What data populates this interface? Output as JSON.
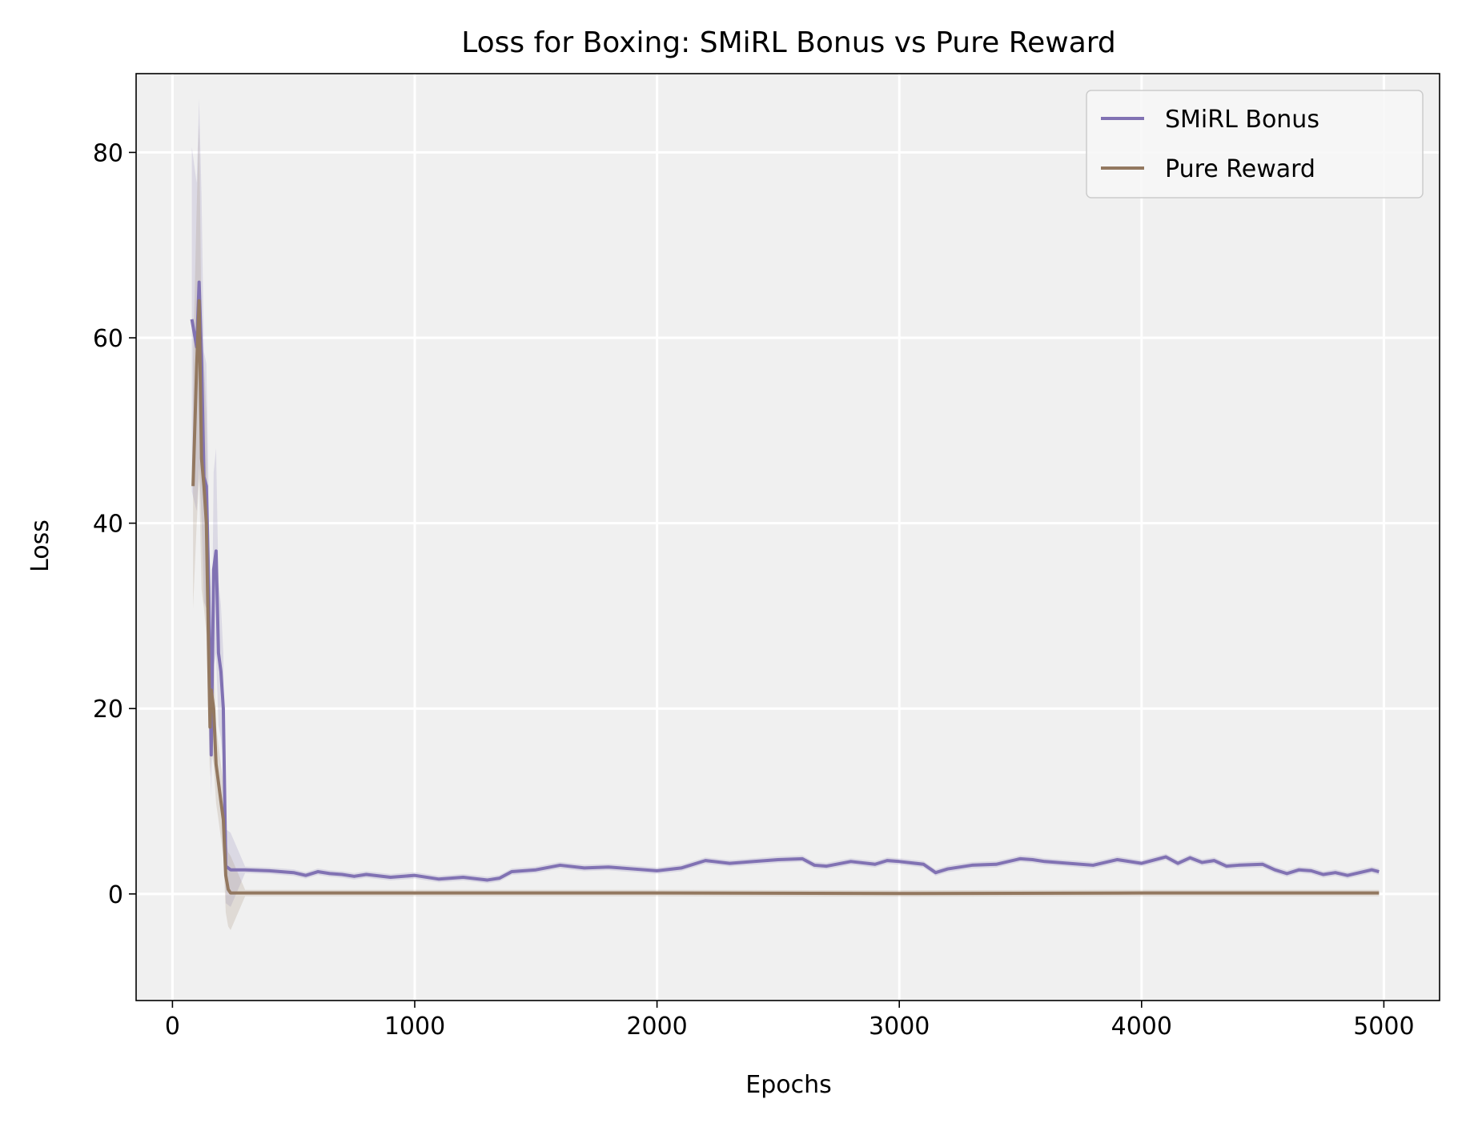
{
  "chart_data": {
    "type": "line",
    "title": "Loss for Boxing: SMiRL Bonus vs Pure Reward",
    "xlabel": "Epochs",
    "ylabel": "Loss",
    "xlim": [
      -150,
      5230
    ],
    "ylim": [
      -11.5,
      88.5
    ],
    "xticks": [
      0,
      1000,
      2000,
      3000,
      4000,
      5000
    ],
    "yticks": [
      0,
      20,
      40,
      60,
      80
    ],
    "grid": true,
    "legend_position": "top-right",
    "background": "#f0f0f0",
    "series": [
      {
        "name": "SMiRL Bonus",
        "color": "#8172b3",
        "x": [
          80,
          100,
          110,
          120,
          130,
          140,
          150,
          160,
          170,
          180,
          190,
          200,
          210,
          220,
          240,
          300,
          400,
          500,
          550,
          600,
          650,
          700,
          750,
          800,
          900,
          1000,
          1100,
          1200,
          1300,
          1350,
          1400,
          1500,
          1600,
          1700,
          1800,
          1900,
          2000,
          2100,
          2200,
          2300,
          2400,
          2500,
          2600,
          2650,
          2700,
          2800,
          2900,
          2950,
          3000,
          3100,
          3150,
          3200,
          3300,
          3400,
          3500,
          3550,
          3600,
          3700,
          3800,
          3850,
          3900,
          4000,
          4100,
          4150,
          4200,
          4250,
          4300,
          4350,
          4400,
          4500,
          4550,
          4600,
          4650,
          4700,
          4750,
          4800,
          4850,
          4900,
          4950,
          4980
        ],
        "y": [
          62,
          59,
          66,
          58,
          45,
          44,
          33,
          15,
          35,
          37,
          26,
          24,
          20,
          3,
          2.6,
          2.6,
          2.5,
          2.3,
          2.0,
          2.4,
          2.2,
          2.1,
          1.9,
          2.1,
          1.8,
          2.0,
          1.6,
          1.8,
          1.5,
          1.7,
          2.4,
          2.6,
          3.1,
          2.8,
          2.9,
          2.7,
          2.5,
          2.8,
          3.6,
          3.3,
          3.5,
          3.7,
          3.8,
          3.1,
          3.0,
          3.5,
          3.2,
          3.6,
          3.5,
          3.2,
          2.3,
          2.7,
          3.1,
          3.2,
          3.8,
          3.7,
          3.5,
          3.3,
          3.1,
          3.4,
          3.7,
          3.3,
          4.0,
          3.3,
          3.9,
          3.4,
          3.6,
          3.0,
          3.1,
          3.2,
          2.6,
          2.2,
          2.6,
          2.5,
          2.1,
          2.3,
          2.0,
          2.3,
          2.6,
          2.4
        ]
      },
      {
        "name": "Pure Reward",
        "color": "#937860",
        "x": [
          85,
          100,
          110,
          120,
          130,
          140,
          150,
          155,
          160,
          165,
          170,
          180,
          190,
          200,
          210,
          220,
          230,
          240,
          300,
          500,
          1000,
          2000,
          3000,
          4000,
          4980
        ],
        "y": [
          44,
          57,
          64,
          47,
          44,
          40,
          25,
          18,
          22,
          21,
          20,
          14,
          12,
          10,
          8,
          2,
          0.5,
          0.1,
          0.1,
          0.1,
          0.1,
          0.1,
          0.05,
          0.1,
          0.1
        ]
      }
    ]
  }
}
